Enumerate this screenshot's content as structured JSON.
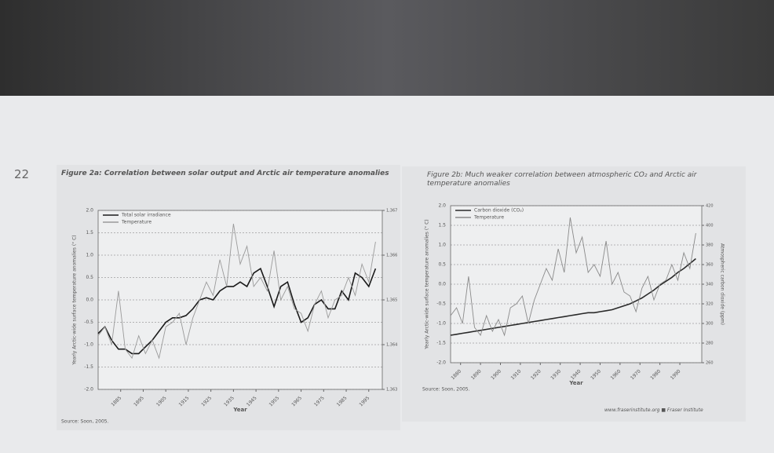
{
  "page_number": "22",
  "footer": "www.fraserinstitute.org ■ Fraser Institute",
  "chart_data": [
    {
      "type": "line",
      "title": "Figure 2a: Correlation between solar output and Arctic air temperature anomalies",
      "xlabel": "Year",
      "ylabel": "Yearly Arctic-wide surface temperature anomalies (° C)",
      "source": "Source: Soon, 2005.",
      "grid": true,
      "legend": "upper left",
      "x": [
        1875,
        1878,
        1881,
        1884,
        1887,
        1890,
        1893,
        1896,
        1899,
        1902,
        1905,
        1908,
        1911,
        1914,
        1917,
        1920,
        1923,
        1926,
        1929,
        1932,
        1935,
        1938,
        1941,
        1944,
        1947,
        1950,
        1953,
        1956,
        1959,
        1962,
        1965,
        1968,
        1971,
        1974,
        1977,
        1980,
        1983,
        1986,
        1989,
        1992,
        1995,
        1998
      ],
      "xlim": [
        1875,
        2001
      ],
      "xticks": [
        1885,
        1895,
        1905,
        1915,
        1925,
        1935,
        1945,
        1955,
        1965,
        1975,
        1985,
        1995
      ],
      "ylim": [
        -2,
        2
      ],
      "yticks": [
        {
          "value": -2,
          "label": "-2.0"
        },
        {
          "value": -1.5,
          "label": "-1.5"
        },
        {
          "value": -1,
          "label": "-1.0"
        },
        {
          "value": -0.5,
          "label": "-0.5"
        },
        {
          "value": 0,
          "label": "0.0"
        },
        {
          "value": 0.5,
          "label": "0.5"
        },
        {
          "value": 1,
          "label": "1.0"
        },
        {
          "value": 1.5,
          "label": "1.5"
        },
        {
          "value": 2,
          "label": "2.0"
        }
      ],
      "y2lim": [
        1363,
        1367
      ],
      "y2ticks": [
        {
          "value": 1363,
          "label": "1,363"
        },
        {
          "value": 1364,
          "label": "1,364"
        },
        {
          "value": 1365,
          "label": "1,365"
        },
        {
          "value": 1366,
          "label": "1,366"
        },
        {
          "value": 1367,
          "label": "1,367"
        }
      ],
      "series": [
        {
          "name": "Total solar irradiance",
          "color": "#1a1a1a",
          "axis": "y2",
          "values": [
            1364.25,
            1364.4,
            1364.1,
            1363.9,
            1363.9,
            1363.8,
            1363.8,
            1363.95,
            1364.1,
            1364.3,
            1364.5,
            1364.6,
            1364.6,
            1364.65,
            1364.8,
            1365.0,
            1365.05,
            1365.0,
            1365.2,
            1365.3,
            1365.3,
            1365.4,
            1365.3,
            1365.6,
            1365.7,
            1365.3,
            1364.85,
            1365.3,
            1365.4,
            1364.9,
            1364.5,
            1364.6,
            1364.9,
            1365.0,
            1364.8,
            1364.8,
            1365.2,
            1365.0,
            1365.6,
            1365.5,
            1365.3,
            1365.7
          ]
        },
        {
          "name": "Temperature",
          "color": "#9a9a9a",
          "values": [
            -0.8,
            -0.6,
            -1.0,
            0.2,
            -1.1,
            -1.3,
            -0.8,
            -1.2,
            -0.9,
            -1.3,
            -0.6,
            -0.5,
            -0.3,
            -1.0,
            -0.4,
            0.0,
            0.4,
            0.1,
            0.9,
            0.3,
            1.7,
            0.8,
            1.2,
            0.3,
            0.5,
            0.2,
            1.1,
            0.0,
            0.3,
            -0.2,
            -0.3,
            -0.7,
            -0.1,
            0.2,
            -0.4,
            0.0,
            0.1,
            0.5,
            0.1,
            0.8,
            0.4,
            1.3
          ]
        }
      ]
    },
    {
      "type": "line",
      "title": "Figure 2b: Much weaker correlation between atmospheric CO₂ and Arctic air temperature anomalies",
      "xlabel": "Year",
      "ylabel": "Yearly Arctic-wide surface temperature anomalies (° C)",
      "y2label": "Atmospheric carbon dioxide (ppm)",
      "source": "Source: Soon, 2005.",
      "grid": true,
      "legend": "upper left",
      "x": [
        1875,
        1878,
        1881,
        1884,
        1887,
        1890,
        1893,
        1896,
        1899,
        1902,
        1905,
        1908,
        1911,
        1914,
        1917,
        1920,
        1923,
        1926,
        1929,
        1932,
        1935,
        1938,
        1941,
        1944,
        1947,
        1950,
        1953,
        1956,
        1959,
        1962,
        1965,
        1968,
        1971,
        1974,
        1977,
        1980,
        1983,
        1986,
        1989,
        1992,
        1995,
        1998
      ],
      "xlim": [
        1875,
        2001
      ],
      "xticks": [
        1880,
        1890,
        1900,
        1910,
        1920,
        1930,
        1940,
        1950,
        1960,
        1970,
        1980,
        1990
      ],
      "ylim": [
        -2,
        2
      ],
      "yticks": [
        {
          "value": -2,
          "label": "-2.0"
        },
        {
          "value": -1.5,
          "label": "-1.5"
        },
        {
          "value": -1,
          "label": "-1.0"
        },
        {
          "value": -0.5,
          "label": "-0.5"
        },
        {
          "value": 0,
          "label": "0.0"
        },
        {
          "value": 0.5,
          "label": "0.5"
        },
        {
          "value": 1,
          "label": "1.0"
        },
        {
          "value": 1.5,
          "label": "1.5"
        },
        {
          "value": 2,
          "label": "2.0"
        }
      ],
      "y2lim": [
        260,
        420
      ],
      "y2ticks": [
        260,
        280,
        300,
        320,
        340,
        360,
        380,
        400,
        420
      ],
      "series": [
        {
          "name": "Carbon dioxide (CO₂)",
          "color": "#2a2a2a",
          "axis": "y2",
          "values": [
            288,
            289,
            290,
            291,
            292,
            293,
            294,
            295,
            296,
            297,
            298,
            299,
            300,
            301,
            302,
            303,
            304,
            305,
            306,
            307,
            308,
            309,
            310,
            311,
            311,
            312,
            313,
            314,
            316,
            318,
            320,
            323,
            326,
            330,
            334,
            339,
            343,
            347,
            352,
            356,
            361,
            366
          ]
        },
        {
          "name": "Temperature",
          "color": "#8a8a8a",
          "values": [
            -0.8,
            -0.6,
            -1.0,
            0.2,
            -1.1,
            -1.3,
            -0.8,
            -1.2,
            -0.9,
            -1.3,
            -0.6,
            -0.5,
            -0.3,
            -1.0,
            -0.4,
            0.0,
            0.4,
            0.1,
            0.9,
            0.3,
            1.7,
            0.8,
            1.2,
            0.3,
            0.5,
            0.2,
            1.1,
            0.0,
            0.3,
            -0.2,
            -0.3,
            -0.7,
            -0.1,
            0.2,
            -0.4,
            0.0,
            0.1,
            0.5,
            0.1,
            0.8,
            0.4,
            1.3
          ]
        }
      ]
    }
  ]
}
